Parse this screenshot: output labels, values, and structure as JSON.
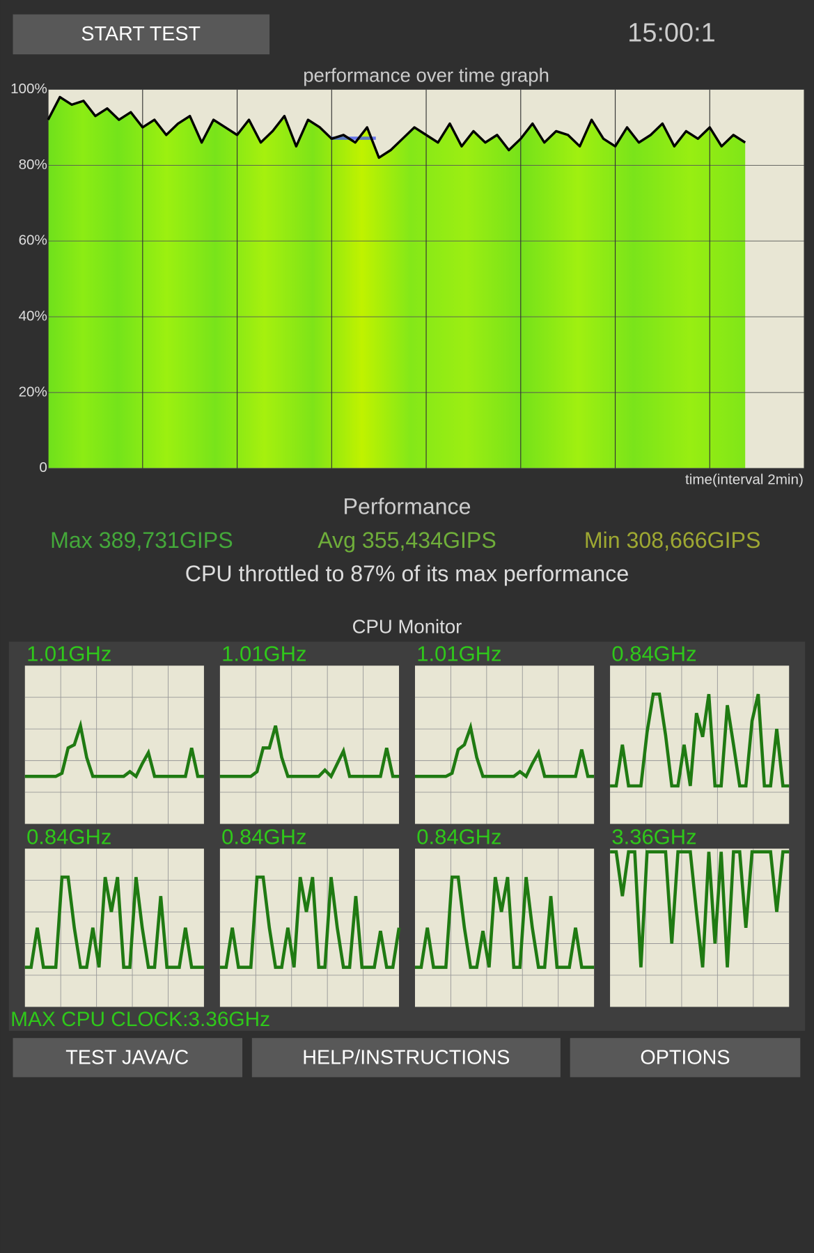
{
  "header": {
    "start_button": "START TEST",
    "timer": "15:00:1"
  },
  "chart_data": {
    "type": "area",
    "title": "performance over time graph",
    "xlabel": "time(interval 2min)",
    "x": [
      0,
      0.25,
      0.5,
      0.75,
      1,
      1.25,
      1.5,
      1.75,
      2,
      2.25,
      2.5,
      2.75,
      3,
      3.25,
      3.5,
      3.75,
      4,
      4.25,
      4.5,
      4.75,
      5,
      5.25,
      5.5,
      5.75,
      6,
      6.25,
      6.5,
      6.75,
      7,
      7.25,
      7.5,
      7.75,
      8,
      8.25,
      8.5,
      8.75,
      9,
      9.25,
      9.5,
      9.75,
      10,
      10.25,
      10.5,
      10.75,
      11,
      11.25,
      11.5,
      11.75,
      12,
      12.25,
      12.5,
      12.75,
      13,
      13.25,
      13.5,
      13.75,
      14,
      14.25,
      14.5,
      14.75
    ],
    "values": [
      92,
      98,
      96,
      97,
      93,
      95,
      92,
      94,
      90,
      92,
      88,
      91,
      93,
      86,
      92,
      90,
      88,
      92,
      86,
      89,
      93,
      85,
      92,
      90,
      87,
      88,
      86,
      90,
      82,
      84,
      87,
      90,
      88,
      86,
      91,
      85,
      89,
      86,
      88,
      84,
      87,
      91,
      86,
      89,
      88,
      85,
      92,
      87,
      85,
      90,
      86,
      88,
      91,
      85,
      89,
      87,
      90,
      85,
      88,
      86
    ],
    "color": "#000000",
    "fill_color": "#86e818",
    "xlim": [
      0,
      16
    ],
    "xticks": [
      0,
      2,
      4,
      6,
      8,
      10,
      12,
      14,
      16
    ],
    "ylim": [
      0,
      100
    ],
    "yticks": [
      0,
      {
        "value": 20,
        "label": "20%"
      },
      {
        "value": 40,
        "label": "40%"
      },
      {
        "value": 60,
        "label": "60%"
      },
      {
        "value": 80,
        "label": "80%"
      },
      {
        "value": 100,
        "label": "100%"
      }
    ],
    "grid": true
  },
  "performance": {
    "title": "Performance",
    "max": "Max 389,731GIPS",
    "avg": "Avg 355,434GIPS",
    "min": "Min 308,666GIPS",
    "throttle": "CPU throttled to 87% of its max performance"
  },
  "cpu_monitor": {
    "title": "CPU Monitor",
    "ylim": [
      0,
      100
    ],
    "color": "#1f7a12",
    "cores": [
      {
        "label": "1.01GHz",
        "values": [
          30,
          30,
          30,
          30,
          30,
          30,
          32,
          48,
          50,
          62,
          42,
          30,
          30,
          30,
          30,
          30,
          30,
          33,
          30,
          38,
          45,
          30,
          30,
          30,
          30,
          30,
          30,
          48,
          30,
          30
        ]
      },
      {
        "label": "1.01GHz",
        "values": [
          30,
          30,
          30,
          30,
          30,
          30,
          33,
          48,
          48,
          62,
          42,
          30,
          30,
          30,
          30,
          30,
          30,
          34,
          30,
          38,
          46,
          30,
          30,
          30,
          30,
          30,
          30,
          48,
          30,
          30
        ]
      },
      {
        "label": "1.01GHz",
        "values": [
          30,
          30,
          30,
          30,
          30,
          30,
          32,
          47,
          50,
          61,
          42,
          30,
          30,
          30,
          30,
          30,
          30,
          33,
          30,
          38,
          45,
          30,
          30,
          30,
          30,
          30,
          30,
          47,
          30,
          30
        ]
      },
      {
        "label": "0.84GHz",
        "values": [
          24,
          24,
          50,
          24,
          24,
          24,
          58,
          82,
          82,
          56,
          24,
          24,
          50,
          24,
          70,
          55,
          82,
          24,
          24,
          75,
          50,
          24,
          24,
          65,
          82,
          24,
          24,
          60,
          24,
          24
        ]
      },
      {
        "label": "0.84GHz",
        "values": [
          25,
          25,
          50,
          25,
          25,
          25,
          82,
          82,
          50,
          25,
          25,
          50,
          25,
          82,
          60,
          82,
          25,
          25,
          82,
          50,
          25,
          25,
          70,
          25,
          25,
          25,
          50,
          25,
          25,
          25
        ]
      },
      {
        "label": "0.84GHz",
        "values": [
          25,
          25,
          50,
          25,
          25,
          25,
          82,
          82,
          50,
          25,
          25,
          50,
          25,
          82,
          60,
          82,
          25,
          25,
          82,
          50,
          25,
          25,
          70,
          25,
          25,
          25,
          48,
          25,
          25,
          50
        ]
      },
      {
        "label": "0.84GHz",
        "values": [
          25,
          25,
          50,
          25,
          25,
          25,
          82,
          82,
          50,
          25,
          25,
          48,
          25,
          82,
          60,
          82,
          25,
          25,
          82,
          50,
          25,
          25,
          70,
          25,
          25,
          25,
          50,
          25,
          25,
          25
        ]
      },
      {
        "label": "3.36GHz",
        "values": [
          98,
          98,
          70,
          98,
          98,
          25,
          98,
          98,
          98,
          98,
          40,
          98,
          98,
          98,
          60,
          25,
          98,
          40,
          98,
          25,
          98,
          98,
          50,
          98,
          98,
          98,
          98,
          60,
          98,
          98
        ]
      }
    ],
    "max_clock": "MAX CPU CLOCK:3.36GHz"
  },
  "buttons": [
    "TEST JAVA/C",
    "HELP/INSTRUCTIONS",
    "OPTIONS"
  ]
}
